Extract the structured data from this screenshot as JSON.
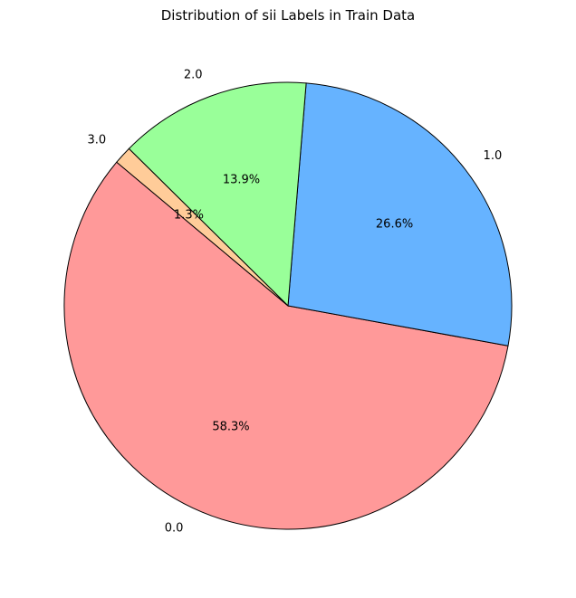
{
  "chart_data": {
    "type": "pie",
    "title": "Distribution of sii Labels in Train Data",
    "slices": [
      {
        "label": "0.0",
        "value": 58.3,
        "pct_text": "58.3%",
        "color": "#ff9999"
      },
      {
        "label": "1.0",
        "value": 26.6,
        "pct_text": "26.6%",
        "color": "#66b3ff"
      },
      {
        "label": "2.0",
        "value": 13.9,
        "pct_text": "13.9%",
        "color": "#99ff99"
      },
      {
        "label": "3.0",
        "value": 1.3,
        "pct_text": "1.3%",
        "color": "#ffcc99"
      }
    ],
    "start_angle_deg": 140,
    "direction": "counterclockwise",
    "edge_color": "#000000"
  }
}
